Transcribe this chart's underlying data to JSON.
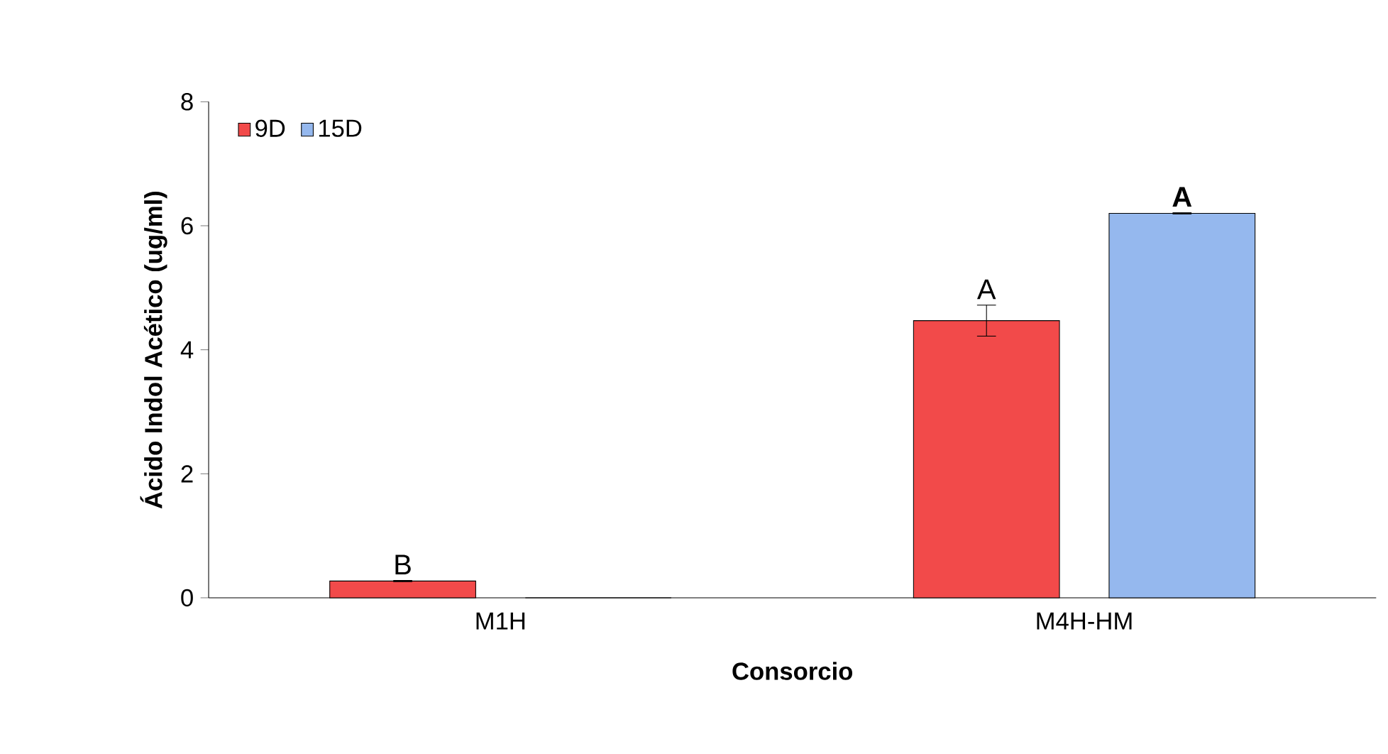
{
  "chart_data": {
    "type": "bar",
    "xlabel": "Consorcio",
    "ylabel": "Ácido Indol Acético (ug/ml)",
    "categories": [
      "M1H",
      "M4H-HM"
    ],
    "series": [
      {
        "name": "9D",
        "color": "#f24a4a",
        "values": [
          0.27,
          4.47
        ],
        "errors": [
          0.01,
          0.25
        ],
        "value_labels": [
          "B",
          "A"
        ]
      },
      {
        "name": "15D",
        "color": "#95b8ee",
        "values": [
          0,
          6.2
        ],
        "errors": [
          null,
          0.01
        ],
        "value_labels": [
          null,
          "**A**"
        ]
      }
    ],
    "ylim": [
      0,
      8
    ],
    "yticks": [
      0,
      2,
      4,
      6,
      8
    ],
    "grid": false,
    "legend": "top left"
  }
}
